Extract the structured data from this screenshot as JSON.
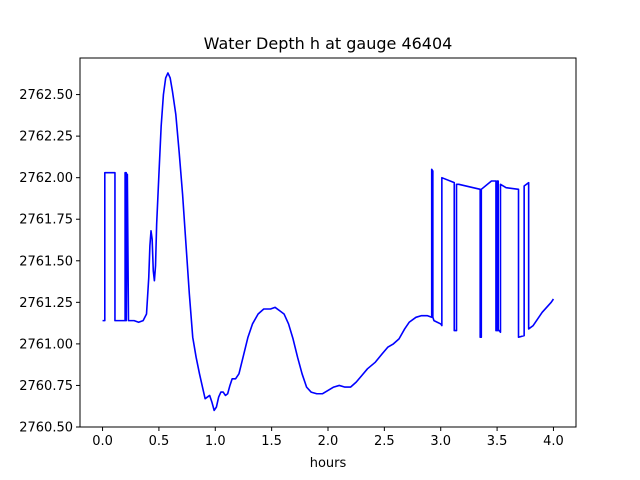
{
  "chart_data": {
    "type": "line",
    "title": "Water Depth h at gauge 46404",
    "xlabel": "hours",
    "ylabel": "",
    "xlim": [
      -0.2,
      4.2
    ],
    "ylim": [
      2760.5,
      2762.72
    ],
    "xticks": [
      0.0,
      0.5,
      1.0,
      1.5,
      2.0,
      2.5,
      3.0,
      3.5,
      4.0
    ],
    "xtick_labels": [
      "0.0",
      "0.5",
      "1.0",
      "1.5",
      "2.0",
      "2.5",
      "3.0",
      "3.5",
      "4.0"
    ],
    "yticks": [
      2760.5,
      2760.75,
      2761.0,
      2761.25,
      2761.5,
      2761.75,
      2762.0,
      2762.25,
      2762.5
    ],
    "ytick_labels": [
      "2760.50",
      "2760.75",
      "2761.00",
      "2761.25",
      "2761.50",
      "2761.75",
      "2762.00",
      "2762.25",
      "2762.50"
    ],
    "grid": false,
    "series": [
      {
        "color": "#0000ff",
        "points": [
          [
            0.0,
            2761.14
          ],
          [
            0.02,
            2761.14
          ],
          [
            0.02,
            2762.03
          ],
          [
            0.11,
            2762.03
          ],
          [
            0.11,
            2761.14
          ],
          [
            0.2,
            2761.14
          ],
          [
            0.2,
            2762.03
          ],
          [
            0.21,
            2762.03
          ],
          [
            0.21,
            2761.14
          ],
          [
            0.22,
            2762.02
          ],
          [
            0.23,
            2761.14
          ],
          [
            0.28,
            2761.14
          ],
          [
            0.32,
            2761.13
          ],
          [
            0.36,
            2761.14
          ],
          [
            0.39,
            2761.18
          ],
          [
            0.41,
            2761.4
          ],
          [
            0.42,
            2761.59
          ],
          [
            0.43,
            2761.68
          ],
          [
            0.44,
            2761.63
          ],
          [
            0.45,
            2761.44
          ],
          [
            0.46,
            2761.38
          ],
          [
            0.47,
            2761.47
          ],
          [
            0.48,
            2761.72
          ],
          [
            0.5,
            2762.02
          ],
          [
            0.52,
            2762.31
          ],
          [
            0.54,
            2762.5
          ],
          [
            0.56,
            2762.6
          ],
          [
            0.58,
            2762.63
          ],
          [
            0.6,
            2762.6
          ],
          [
            0.62,
            2762.52
          ],
          [
            0.65,
            2762.38
          ],
          [
            0.68,
            2762.15
          ],
          [
            0.71,
            2761.9
          ],
          [
            0.74,
            2761.6
          ],
          [
            0.77,
            2761.3
          ],
          [
            0.8,
            2761.04
          ],
          [
            0.83,
            2760.92
          ],
          [
            0.86,
            2760.82
          ],
          [
            0.89,
            2760.73
          ],
          [
            0.91,
            2760.67
          ],
          [
            0.93,
            2760.68
          ],
          [
            0.95,
            2760.69
          ],
          [
            0.97,
            2760.65
          ],
          [
            0.99,
            2760.6
          ],
          [
            1.01,
            2760.62
          ],
          [
            1.03,
            2760.68
          ],
          [
            1.05,
            2760.71
          ],
          [
            1.07,
            2760.71
          ],
          [
            1.09,
            2760.69
          ],
          [
            1.11,
            2760.7
          ],
          [
            1.13,
            2760.75
          ],
          [
            1.15,
            2760.79
          ],
          [
            1.18,
            2760.79
          ],
          [
            1.21,
            2760.82
          ],
          [
            1.25,
            2760.93
          ],
          [
            1.29,
            2761.04
          ],
          [
            1.33,
            2761.12
          ],
          [
            1.38,
            2761.18
          ],
          [
            1.43,
            2761.21
          ],
          [
            1.49,
            2761.21
          ],
          [
            1.53,
            2761.22
          ],
          [
            1.57,
            2761.2
          ],
          [
            1.61,
            2761.18
          ],
          [
            1.65,
            2761.12
          ],
          [
            1.69,
            2761.03
          ],
          [
            1.73,
            2760.92
          ],
          [
            1.77,
            2760.82
          ],
          [
            1.81,
            2760.74
          ],
          [
            1.85,
            2760.71
          ],
          [
            1.9,
            2760.7
          ],
          [
            1.95,
            2760.7
          ],
          [
            2.0,
            2760.72
          ],
          [
            2.05,
            2760.74
          ],
          [
            2.1,
            2760.75
          ],
          [
            2.15,
            2760.74
          ],
          [
            2.2,
            2760.74
          ],
          [
            2.25,
            2760.77
          ],
          [
            2.3,
            2760.81
          ],
          [
            2.35,
            2760.85
          ],
          [
            2.42,
            2760.89
          ],
          [
            2.48,
            2760.94
          ],
          [
            2.53,
            2760.98
          ],
          [
            2.58,
            2761.0
          ],
          [
            2.63,
            2761.03
          ],
          [
            2.68,
            2761.09
          ],
          [
            2.72,
            2761.13
          ],
          [
            2.78,
            2761.16
          ],
          [
            2.83,
            2761.17
          ],
          [
            2.88,
            2761.17
          ],
          [
            2.92,
            2761.16
          ],
          [
            2.92,
            2762.05
          ],
          [
            2.93,
            2762.04
          ],
          [
            2.93,
            2761.16
          ],
          [
            2.94,
            2761.14
          ],
          [
            3.0,
            2761.12
          ],
          [
            3.01,
            2761.11
          ],
          [
            3.01,
            2762.0
          ],
          [
            3.12,
            2761.97
          ],
          [
            3.12,
            2761.08
          ],
          [
            3.14,
            2761.08
          ],
          [
            3.14,
            2761.96
          ],
          [
            3.16,
            2761.96
          ],
          [
            3.35,
            2761.93
          ],
          [
            3.35,
            2761.04
          ],
          [
            3.36,
            2761.04
          ],
          [
            3.36,
            2761.93
          ],
          [
            3.45,
            2761.98
          ],
          [
            3.49,
            2761.98
          ],
          [
            3.49,
            2761.08
          ],
          [
            3.5,
            2761.08
          ],
          [
            3.5,
            2761.98
          ],
          [
            3.51,
            2761.98
          ],
          [
            3.51,
            2761.08
          ],
          [
            3.52,
            2761.08
          ],
          [
            3.53,
            2761.07
          ],
          [
            3.53,
            2761.96
          ],
          [
            3.58,
            2761.94
          ],
          [
            3.69,
            2761.93
          ],
          [
            3.69,
            2761.04
          ],
          [
            3.74,
            2761.05
          ],
          [
            3.74,
            2761.95
          ],
          [
            3.78,
            2761.97
          ],
          [
            3.78,
            2761.09
          ],
          [
            3.82,
            2761.11
          ],
          [
            3.86,
            2761.15
          ],
          [
            3.9,
            2761.19
          ],
          [
            3.94,
            2761.22
          ],
          [
            3.98,
            2761.25
          ],
          [
            4.0,
            2761.27
          ]
        ]
      }
    ]
  }
}
